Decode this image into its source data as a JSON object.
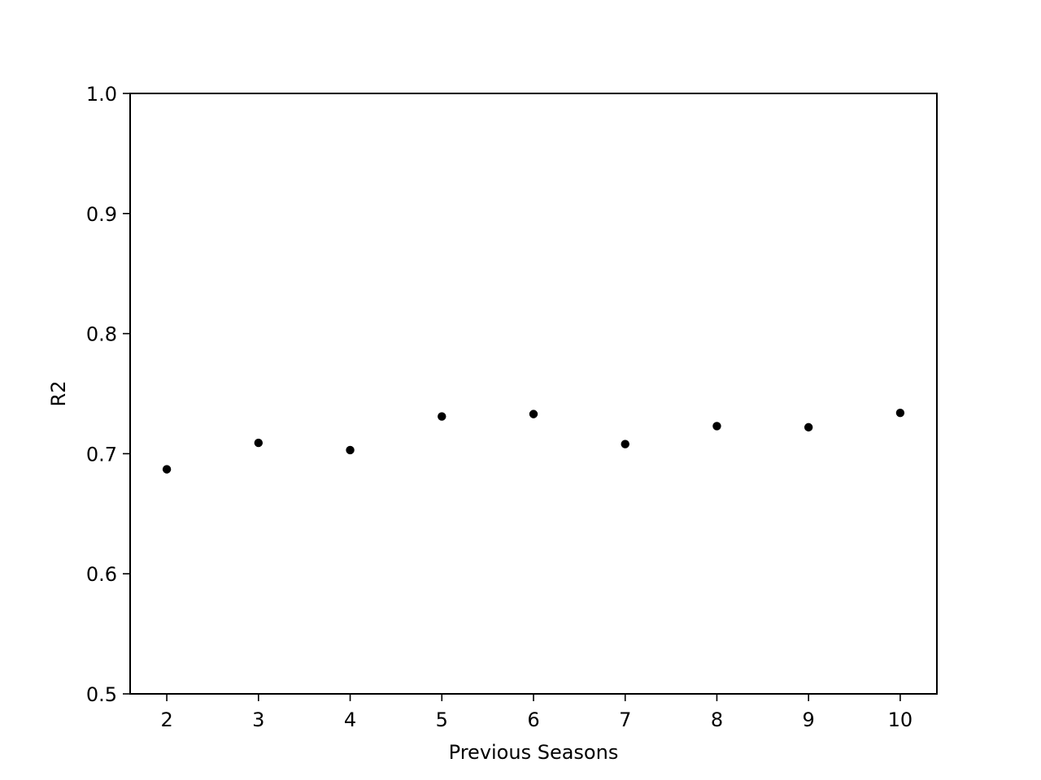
{
  "chart_data": {
    "type": "scatter",
    "title": "",
    "xlabel": "Previous Seasons",
    "ylabel": "R2",
    "x": [
      2,
      3,
      4,
      5,
      6,
      7,
      8,
      9,
      10
    ],
    "y": [
      0.687,
      0.709,
      0.703,
      0.731,
      0.733,
      0.708,
      0.723,
      0.722,
      0.734
    ],
    "xlim": [
      1.6,
      10.4
    ],
    "ylim": [
      0.5,
      1.0
    ],
    "xticks": [
      2,
      3,
      4,
      5,
      6,
      7,
      8,
      9,
      10
    ],
    "xtick_labels": [
      "2",
      "3",
      "4",
      "5",
      "6",
      "7",
      "8",
      "9",
      "10"
    ],
    "yticks": [
      0.5,
      0.6,
      0.7,
      0.8,
      0.9,
      1.0
    ],
    "ytick_labels": [
      "0.5",
      "0.6",
      "0.7",
      "0.8",
      "0.9",
      "1.0"
    ],
    "grid": false,
    "legend": null,
    "marker_color": "#000000"
  }
}
